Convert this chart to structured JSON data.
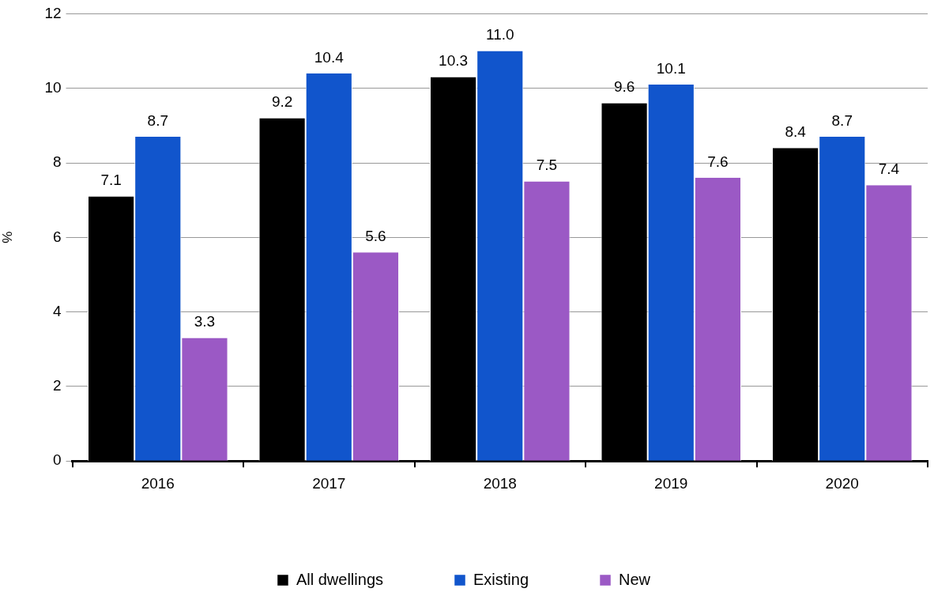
{
  "chart_data": {
    "type": "bar",
    "ylabel": "%",
    "categories": [
      "2016",
      "2017",
      "2018",
      "2019",
      "2020"
    ],
    "series": [
      {
        "name": "All dwellings",
        "color": "#000000",
        "values": [
          7.1,
          9.2,
          10.3,
          9.6,
          8.4
        ]
      },
      {
        "name": "Existing",
        "color": "#1155cc",
        "values": [
          8.7,
          10.4,
          11.0,
          10.1,
          8.7
        ]
      },
      {
        "name": "New",
        "color": "#9b59c5",
        "values": [
          3.3,
          5.6,
          7.5,
          7.6,
          7.4
        ]
      }
    ],
    "value_labels": [
      [
        "7.1",
        "9.2",
        "10.3",
        "9.6",
        "8.4"
      ],
      [
        "8.7",
        "10.4",
        "11.0",
        "10.1",
        "8.7"
      ],
      [
        "3.3",
        "5.6",
        "7.5",
        "7.6",
        "7.4"
      ]
    ],
    "ylim": [
      0,
      12
    ],
    "yticks": [
      0,
      2,
      4,
      6,
      8,
      10,
      12
    ],
    "grid": "y",
    "legend": "bottom"
  }
}
